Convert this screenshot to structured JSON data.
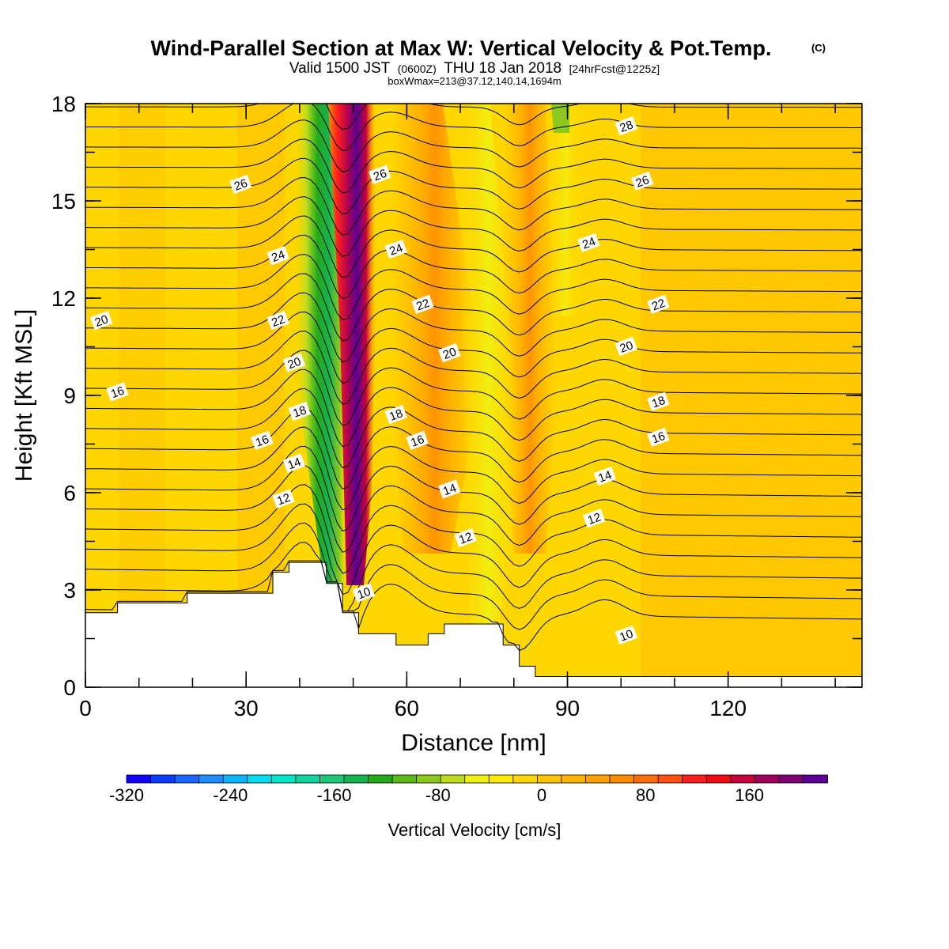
{
  "header": {
    "title": "Wind-Parallel Section at Max W: Vertical Velocity & Pot.Temp.",
    "copyright": "(C)",
    "valid_prefix": "Valid 1500 JST",
    "valid_utc": "(0600Z)",
    "valid_date": "THU 18 Jan 2018",
    "forecast": "[24hrFcst@1225z]",
    "box_info": "boxWmax=213@37.12,140.14,1694m"
  },
  "chart_data": {
    "type": "heatmap",
    "xlabel": "Distance [nm]",
    "ylabel": "Height [Kft MSL]",
    "xlim": [
      0,
      145
    ],
    "ylim": [
      0,
      18
    ],
    "x_ticks": [
      0,
      30,
      60,
      90,
      120
    ],
    "y_ticks": [
      0,
      3,
      6,
      9,
      12,
      15,
      18
    ],
    "colorbar": {
      "label": "Vertical Velocity [cm/s]",
      "min": -320,
      "max": 220,
      "tick_values": [
        -320,
        -240,
        -160,
        -80,
        0,
        80,
        160
      ],
      "tick_labels": [
        "-320",
        "-240",
        "-160",
        "-80",
        "0",
        "80",
        "160"
      ],
      "colors": [
        "#1400ff",
        "#0a3cff",
        "#1a64ff",
        "#1e8cff",
        "#0ab4ff",
        "#00dcf0",
        "#00e6c8",
        "#14d2a0",
        "#1ec878",
        "#14b450",
        "#23aa19",
        "#5ab914",
        "#8cc81e",
        "#bedc1e",
        "#f0f014",
        "#ffeb00",
        "#ffd700",
        "#ffc300",
        "#ffb400",
        "#ffa000",
        "#ff8c00",
        "#ff6e0a",
        "#ff5014",
        "#ff1e1e",
        "#f00a14",
        "#c8003c",
        "#a0005a",
        "#800073",
        "#5a0096"
      ]
    },
    "terrain": [
      [
        0,
        2.3
      ],
      [
        6,
        2.3
      ],
      [
        6,
        2.6
      ],
      [
        19,
        2.6
      ],
      [
        19,
        2.9
      ],
      [
        35,
        2.9
      ],
      [
        35,
        3.55
      ],
      [
        38,
        3.55
      ],
      [
        38,
        3.85
      ],
      [
        45,
        3.85
      ],
      [
        45,
        3.2
      ],
      [
        48,
        3.2
      ],
      [
        48,
        2.3
      ],
      [
        51,
        2.3
      ],
      [
        51,
        1.65
      ],
      [
        58,
        1.65
      ],
      [
        58,
        1.3
      ],
      [
        64,
        1.3
      ],
      [
        64,
        1.65
      ],
      [
        67,
        1.65
      ],
      [
        67,
        1.95
      ],
      [
        78,
        1.95
      ],
      [
        78,
        1.3
      ],
      [
        81,
        1.3
      ],
      [
        81,
        0.65
      ],
      [
        84,
        0.65
      ],
      [
        84,
        0.33
      ],
      [
        145,
        0.33
      ]
    ],
    "contour_labels": [
      {
        "text": "26",
        "x": 29,
        "y": 15.5
      },
      {
        "text": "26",
        "x": 55,
        "y": 15.8
      },
      {
        "text": "28",
        "x": 101,
        "y": 17.3
      },
      {
        "text": "26",
        "x": 104,
        "y": 15.6
      },
      {
        "text": "24",
        "x": 36,
        "y": 13.3
      },
      {
        "text": "24",
        "x": 58,
        "y": 13.5
      },
      {
        "text": "24",
        "x": 94,
        "y": 13.7
      },
      {
        "text": "22",
        "x": 36,
        "y": 11.3
      },
      {
        "text": "22",
        "x": 63,
        "y": 11.8
      },
      {
        "text": "22",
        "x": 107,
        "y": 11.8
      },
      {
        "text": "20",
        "x": 3,
        "y": 11.3
      },
      {
        "text": "20",
        "x": 39,
        "y": 10.0
      },
      {
        "text": "20",
        "x": 68,
        "y": 10.3
      },
      {
        "text": "20",
        "x": 101,
        "y": 10.5
      },
      {
        "text": "16",
        "x": 6,
        "y": 9.1
      },
      {
        "text": "18",
        "x": 40,
        "y": 8.5
      },
      {
        "text": "18",
        "x": 58,
        "y": 8.4
      },
      {
        "text": "18",
        "x": 107,
        "y": 8.8
      },
      {
        "text": "16",
        "x": 33,
        "y": 7.6
      },
      {
        "text": "16",
        "x": 62,
        "y": 7.6
      },
      {
        "text": "16",
        "x": 107,
        "y": 7.7
      },
      {
        "text": "14",
        "x": 39,
        "y": 6.9
      },
      {
        "text": "14",
        "x": 68,
        "y": 6.1
      },
      {
        "text": "14",
        "x": 97,
        "y": 6.5
      },
      {
        "text": "12",
        "x": 37,
        "y": 5.8
      },
      {
        "text": "12",
        "x": 71,
        "y": 4.6
      },
      {
        "text": "12",
        "x": 95,
        "y": 5.2
      },
      {
        "text": "10",
        "x": 52,
        "y": 2.9
      },
      {
        "text": "10",
        "x": 101,
        "y": 1.6
      }
    ]
  }
}
